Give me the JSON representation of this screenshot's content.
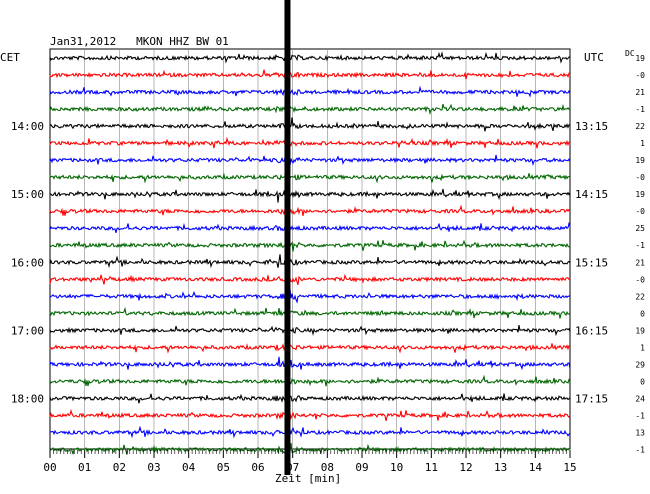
{
  "chart_data": {
    "type": "line",
    "title": "Jan31,2012   MKON HHZ BW 01",
    "xlabel": "Zeit [min]",
    "left_tz_label": "CET",
    "right_tz_label": "UTC",
    "dc_label": "DC",
    "xlim": [
      0,
      15
    ],
    "x_ticks": [
      "00",
      "01",
      "02",
      "03",
      "04",
      "05",
      "06",
      "07",
      "08",
      "09",
      "10",
      "11",
      "12",
      "13",
      "14",
      "15"
    ],
    "left_hour_labels": [
      {
        "row": 4,
        "label": "14:00"
      },
      {
        "row": 8,
        "label": "15:00"
      },
      {
        "row": 12,
        "label": "16:00"
      },
      {
        "row": 16,
        "label": "17:00"
      },
      {
        "row": 20,
        "label": "18:00"
      }
    ],
    "right_hour_labels": [
      {
        "row": 4,
        "label": "13:15"
      },
      {
        "row": 8,
        "label": "14:15"
      },
      {
        "row": 12,
        "label": "15:15"
      },
      {
        "row": 16,
        "label": "16:15"
      },
      {
        "row": 20,
        "label": "17:15"
      }
    ],
    "trace_colors": [
      "#000000",
      "#ff0000",
      "#0000ff",
      "#006600"
    ],
    "dc_offsets": [
      "19",
      "-0",
      "21",
      "-1",
      "22",
      "1",
      "19",
      "-0",
      "19",
      "-0",
      "25",
      "-1",
      "21",
      "-0",
      "22",
      "0",
      "19",
      "1",
      "29",
      "0",
      "24",
      "-1",
      "13",
      "-1"
    ],
    "event_marker_minute": 6.85,
    "series_count": 24
  }
}
